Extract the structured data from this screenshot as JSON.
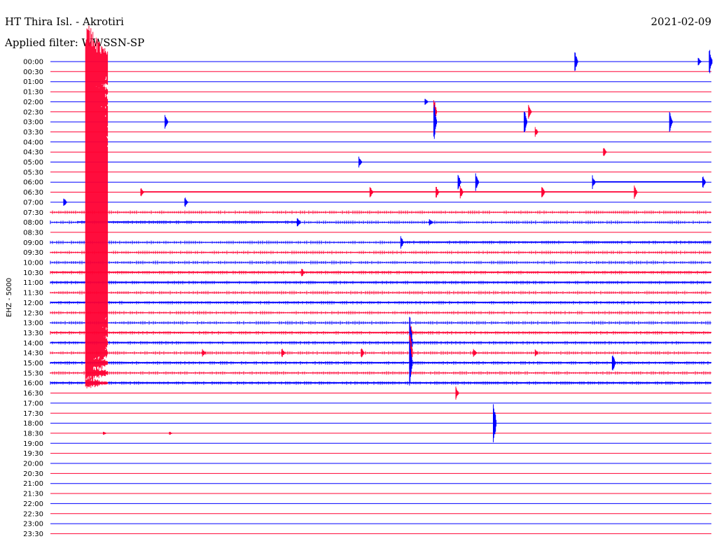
{
  "header": {
    "station": "HT Thira Isl. - Akrotiri",
    "date": "2021-02-09",
    "filter": "Applied filter: WWSSN-SP"
  },
  "chart_data": {
    "type": "helicorder",
    "channel_label": "EHZ - 5000",
    "ytick_labels": [
      "00:00",
      "00:30",
      "01:00",
      "01:30",
      "02:00",
      "02:30",
      "03:00",
      "03:30",
      "04:00",
      "04:30",
      "05:00",
      "05:30",
      "06:00",
      "06:30",
      "07:00",
      "07:30",
      "08:00",
      "08:30",
      "09:00",
      "09:30",
      "10:00",
      "10:30",
      "11:00",
      "11:30",
      "12:00",
      "12:30",
      "13:00",
      "13:30",
      "14:00",
      "14:30",
      "15:00",
      "15:30",
      "16:00",
      "16:30",
      "17:00",
      "17:30",
      "18:00",
      "18:30",
      "19:00",
      "19:30",
      "20:00",
      "20:30",
      "21:00",
      "21:30",
      "22:00",
      "22:30",
      "23:00",
      "23:30"
    ],
    "minutes_per_line": 30,
    "colors": {
      "even": "#0000ff",
      "odd": "#ff0033"
    },
    "noise_level": [
      0,
      0,
      0,
      0,
      0,
      0,
      0,
      0,
      0,
      0,
      0,
      0,
      0,
      0,
      0,
      1,
      1,
      0,
      1,
      1,
      1,
      1,
      1,
      1,
      1,
      1,
      1,
      1,
      1,
      1,
      1,
      1,
      1,
      0,
      0,
      0,
      0,
      0,
      0,
      0,
      0,
      0,
      0,
      0,
      0,
      0,
      0,
      0
    ],
    "events": [
      {
        "line": 0,
        "minute": 23.8,
        "amp": 16
      },
      {
        "line": 0,
        "minute": 29.4,
        "amp": 6
      },
      {
        "line": 0,
        "minute": 29.9,
        "amp": 20
      },
      {
        "line": 4,
        "minute": 17.0,
        "amp": 6
      },
      {
        "line": 5,
        "minute": 17.4,
        "amp": 22
      },
      {
        "line": 6,
        "minute": 17.4,
        "amp": 30
      },
      {
        "line": 5,
        "minute": 21.7,
        "amp": 10
      },
      {
        "line": 6,
        "minute": 21.5,
        "amp": 20
      },
      {
        "line": 6,
        "minute": 28.1,
        "amp": 16
      },
      {
        "line": 7,
        "minute": 22.0,
        "amp": 7
      },
      {
        "line": 6,
        "minute": 5.2,
        "amp": 10
      },
      {
        "line": 9,
        "minute": 25.1,
        "amp": 8
      },
      {
        "line": 10,
        "minute": 14.0,
        "amp": 8
      },
      {
        "line": 12,
        "minute": 18.5,
        "amp": 12
      },
      {
        "line": 12,
        "minute": 19.3,
        "amp": 16
      },
      {
        "line": 12,
        "minute": 24.6,
        "amp": 10
      },
      {
        "line": 12,
        "minute": 29.6,
        "amp": 10
      },
      {
        "line": 13,
        "minute": 4.1,
        "amp": 8
      },
      {
        "line": 13,
        "minute": 14.5,
        "amp": 9
      },
      {
        "line": 13,
        "minute": 17.5,
        "amp": 10
      },
      {
        "line": 13,
        "minute": 18.6,
        "amp": 10
      },
      {
        "line": 13,
        "minute": 22.3,
        "amp": 10
      },
      {
        "line": 13,
        "minute": 26.5,
        "amp": 10
      },
      {
        "line": 14,
        "minute": 0.6,
        "amp": 8
      },
      {
        "line": 14,
        "minute": 6.1,
        "amp": 8
      },
      {
        "line": 16,
        "minute": 11.2,
        "amp": 9
      },
      {
        "line": 16,
        "minute": 17.2,
        "amp": 6
      },
      {
        "line": 18,
        "minute": 15.9,
        "amp": 10
      },
      {
        "line": 21,
        "minute": 11.4,
        "amp": 7
      },
      {
        "line": 27,
        "minute": 16.3,
        "amp": 20
      },
      {
        "line": 28,
        "minute": 16.3,
        "amp": 45
      },
      {
        "line": 29,
        "minute": 16.3,
        "amp": 40
      },
      {
        "line": 30,
        "minute": 16.3,
        "amp": 40
      },
      {
        "line": 29,
        "minute": 10.5,
        "amp": 8
      },
      {
        "line": 29,
        "minute": 14.1,
        "amp": 8
      },
      {
        "line": 29,
        "minute": 6.9,
        "amp": 7
      },
      {
        "line": 29,
        "minute": 19.2,
        "amp": 7
      },
      {
        "line": 29,
        "minute": 22.0,
        "amp": 5
      },
      {
        "line": 30,
        "minute": 25.5,
        "amp": 16
      },
      {
        "line": 33,
        "minute": 18.4,
        "amp": 10
      },
      {
        "line": 36,
        "minute": 20.1,
        "amp": 38
      },
      {
        "line": 37,
        "minute": 2.4,
        "amp": 3
      },
      {
        "line": 37,
        "minute": 5.4,
        "amp": 3
      }
    ],
    "segments": [
      {
        "line": 13,
        "from": 4.1,
        "to": 26.5
      },
      {
        "line": 12,
        "from": 24.6,
        "to": 29.6
      },
      {
        "line": 16,
        "from": 1.2,
        "to": 11.2
      },
      {
        "line": 18,
        "from": 15.9,
        "to": 30
      },
      {
        "line": 21,
        "from": 0,
        "to": 30
      },
      {
        "line": 22,
        "from": 0,
        "to": 30
      },
      {
        "line": 24,
        "from": 0,
        "to": 30
      },
      {
        "line": 27,
        "from": 0,
        "to": 30
      },
      {
        "line": 28,
        "from": 0,
        "to": 30
      },
      {
        "line": 30,
        "from": 0,
        "to": 30
      },
      {
        "line": 32,
        "from": 0,
        "to": 30
      }
    ],
    "big_quake": {
      "minute": 1.5,
      "start_line": 0,
      "end_line": 32,
      "peak_line": 16
    }
  }
}
